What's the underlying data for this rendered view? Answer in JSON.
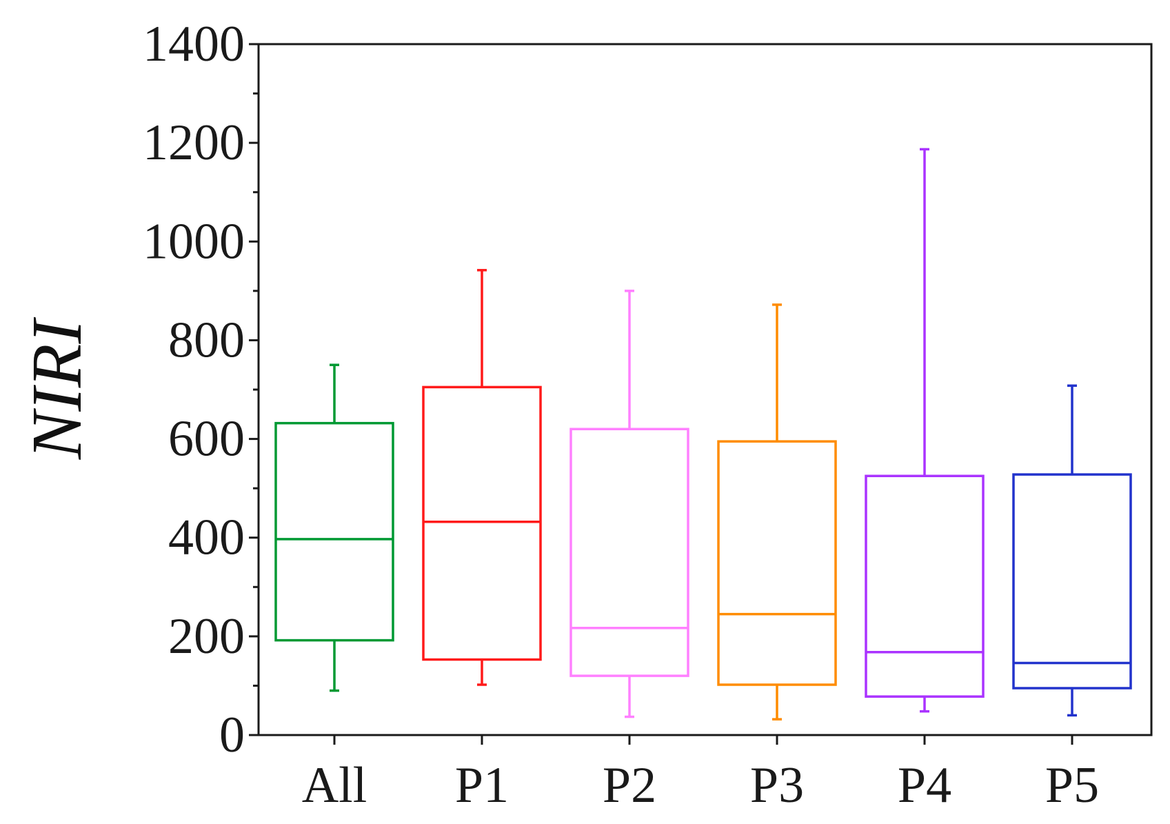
{
  "chart_data": {
    "type": "box",
    "title": "",
    "xlabel": "",
    "ylabel": "NIRI",
    "ylim": [
      0,
      1400
    ],
    "y_ticks": [
      "0",
      "200",
      "400",
      "600",
      "800",
      "1000",
      "1200",
      "1400"
    ],
    "y_tick_values": [
      0,
      200,
      400,
      600,
      800,
      1000,
      1200,
      1400
    ],
    "categories": [
      "All",
      "P1",
      "P2",
      "P3",
      "P4",
      "P5"
    ],
    "series": [
      {
        "name": "All",
        "color": "#009933",
        "whisker_low": 90,
        "q1": 192,
        "median": 397,
        "q3": 632,
        "whisker_high": 750
      },
      {
        "name": "P1",
        "color": "#ff1a1a",
        "whisker_low": 102,
        "q1": 153,
        "median": 432,
        "q3": 705,
        "whisker_high": 942
      },
      {
        "name": "P2",
        "color": "#ff80ff",
        "whisker_low": 37,
        "q1": 120,
        "median": 217,
        "q3": 620,
        "whisker_high": 900
      },
      {
        "name": "P3",
        "color": "#ff8c00",
        "whisker_low": 32,
        "q1": 102,
        "median": 245,
        "q3": 595,
        "whisker_high": 872
      },
      {
        "name": "P4",
        "color": "#aa33ff",
        "whisker_low": 48,
        "q1": 78,
        "median": 168,
        "q3": 525,
        "whisker_high": 1187
      },
      {
        "name": "P5",
        "color": "#2233cc",
        "whisker_low": 40,
        "q1": 95,
        "median": 146,
        "q3": 528,
        "whisker_high": 708
      }
    ],
    "grid": false,
    "legend": "none"
  }
}
